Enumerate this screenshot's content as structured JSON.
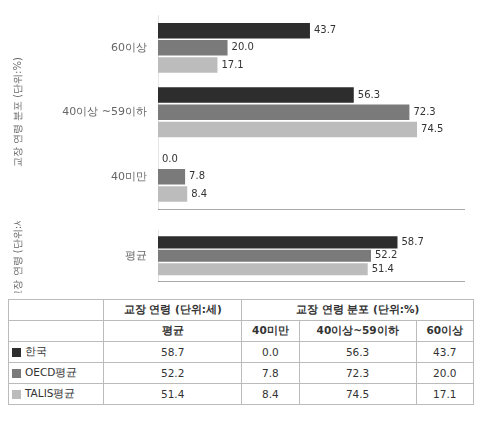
{
  "chart_data": [
    {
      "type": "bar",
      "orientation": "horizontal",
      "categories": [
        "60이상",
        "40이상 ~59이하",
        "40미만"
      ],
      "ylabel": "교장 연령 분포 (단위:%)",
      "series": [
        {
          "name": "한국",
          "color": "#2d2d2d",
          "values": [
            43.7,
            56.3,
            0.0
          ],
          "value_labels": [
            "43.7",
            "56.3",
            "0.0"
          ]
        },
        {
          "name": "OECD평균",
          "color": "#7a7a7a",
          "values": [
            20.0,
            72.3,
            7.8
          ],
          "value_labels": [
            "20.0",
            "72.3",
            "7.8"
          ]
        },
        {
          "name": "TALIS평균",
          "color": "#bcbcbc",
          "values": [
            17.1,
            74.5,
            8.4
          ],
          "value_labels": [
            "17.1",
            "74.5",
            "8.4"
          ]
        }
      ],
      "xlim": [
        0,
        88
      ],
      "xticks": [],
      "tick_labels": "y",
      "grid": false,
      "data_labels": true
    },
    {
      "type": "bar",
      "orientation": "horizontal",
      "categories": [
        "평균"
      ],
      "ylabel": "교장 연령 (단위:세)",
      "series": [
        {
          "name": "한국",
          "color": "#2d2d2d",
          "values": [
            58.7
          ],
          "value_labels": [
            "58.7"
          ]
        },
        {
          "name": "OECD평균",
          "color": "#7a7a7a",
          "values": [
            52.2
          ],
          "value_labels": [
            "52.2"
          ]
        },
        {
          "name": "TALIS평균",
          "color": "#bcbcbc",
          "values": [
            51.4
          ],
          "value_labels": [
            "51.4"
          ]
        }
      ],
      "xlim": [
        0,
        75
      ],
      "xticks": [],
      "tick_labels": "y",
      "grid": false,
      "data_labels": true
    }
  ],
  "table": {
    "header_groups": [
      "교장 연령 (단위:세)",
      "교장 연령 분포 (단위:%)"
    ],
    "columns": [
      "평균",
      "40미만",
      "40이상~59이하",
      "60이상"
    ],
    "rows": [
      {
        "values": [
          58.7,
          0.0,
          56.3,
          43.7
        ],
        "value_labels": [
          "58.7",
          "0.0",
          "56.3",
          "43.7"
        ]
      },
      {
        "values": [
          52.2,
          7.8,
          72.3,
          20.0
        ],
        "value_labels": [
          "52.2",
          "7.8",
          "72.3",
          "20.0"
        ]
      },
      {
        "values": [
          51.4,
          8.4,
          74.5,
          17.1
        ],
        "value_labels": [
          "51.4",
          "8.4",
          "74.5",
          "17.1"
        ]
      }
    ]
  }
}
